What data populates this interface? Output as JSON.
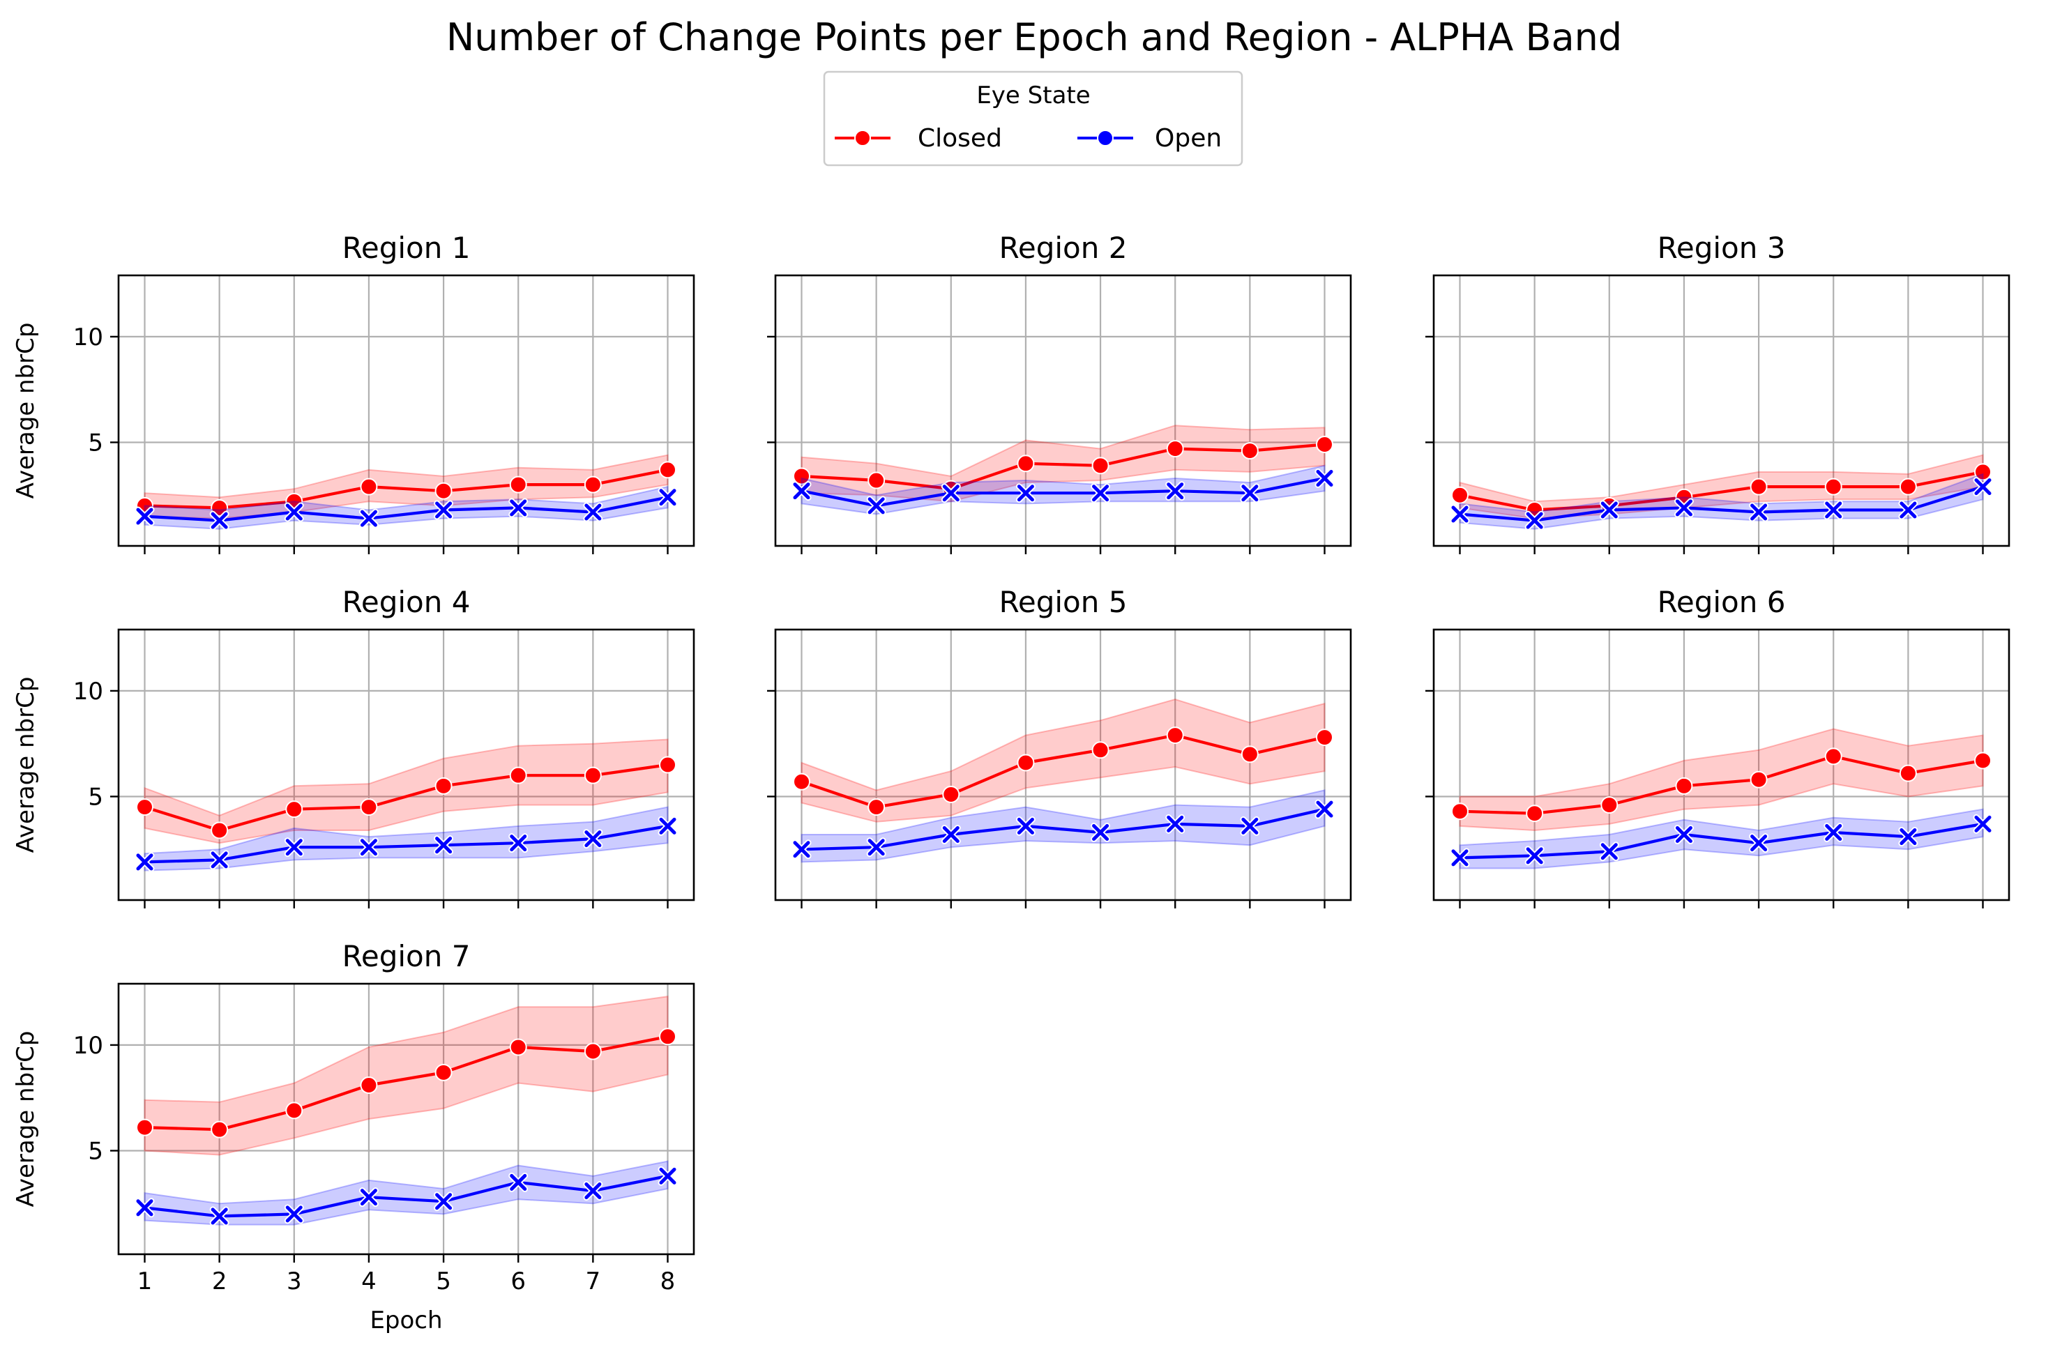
{
  "title": "Number of Change Points per Epoch and Region - ALPHA Band",
  "legend": {
    "title": "Eye State",
    "placement": "top-center",
    "entries": [
      {
        "label": "Closed",
        "color": "#ff0000",
        "marker": "circle"
      },
      {
        "label": "Open",
        "color": "#0000ff",
        "marker": "x"
      }
    ]
  },
  "colors": {
    "closed": "#ff0000",
    "open": "#0000ff",
    "grid": "#b0b0b0"
  },
  "chart_data": {
    "type": "line",
    "x": [
      1,
      2,
      3,
      4,
      5,
      6,
      7,
      8
    ],
    "xlabel": "Epoch",
    "ylabel": "Average nbrCp",
    "ylim": [
      0.1,
      12.9
    ],
    "yticks": [
      5,
      10
    ],
    "grid": true,
    "panels": [
      {
        "title": "Region 1",
        "series": [
          {
            "name": "Closed",
            "values": [
              2.0,
              1.9,
              2.2,
              2.9,
              2.7,
              3.0,
              3.0,
              3.7
            ],
            "lower": [
              1.5,
              1.4,
              1.7,
              2.2,
              2.0,
              2.3,
              2.4,
              3.0
            ],
            "upper": [
              2.6,
              2.4,
              2.8,
              3.7,
              3.4,
              3.8,
              3.7,
              4.4
            ]
          },
          {
            "name": "Open",
            "values": [
              1.5,
              1.3,
              1.7,
              1.4,
              1.8,
              1.9,
              1.7,
              2.4
            ],
            "lower": [
              1.1,
              0.9,
              1.3,
              1.1,
              1.4,
              1.5,
              1.3,
              1.9
            ],
            "upper": [
              2.0,
              1.8,
              2.2,
              1.8,
              2.2,
              2.3,
              2.1,
              2.9
            ]
          }
        ]
      },
      {
        "title": "Region 2",
        "series": [
          {
            "name": "Closed",
            "values": [
              3.4,
              3.2,
              2.8,
              4.0,
              3.9,
              4.7,
              4.6,
              4.9
            ],
            "lower": [
              2.6,
              2.5,
              2.2,
              3.1,
              3.2,
              3.7,
              3.6,
              3.9
            ],
            "upper": [
              4.3,
              4.0,
              3.4,
              5.1,
              4.7,
              5.8,
              5.6,
              5.7
            ]
          },
          {
            "name": "Open",
            "values": [
              2.7,
              2.0,
              2.6,
              2.6,
              2.6,
              2.7,
              2.6,
              3.3
            ],
            "lower": [
              2.1,
              1.6,
              2.2,
              2.1,
              2.2,
              2.2,
              2.2,
              2.7
            ],
            "upper": [
              3.3,
              2.5,
              3.1,
              3.2,
              3.0,
              3.3,
              3.1,
              3.9
            ]
          }
        ]
      },
      {
        "title": "Region 3",
        "series": [
          {
            "name": "Closed",
            "values": [
              2.5,
              1.8,
              2.0,
              2.4,
              2.9,
              2.9,
              2.9,
              3.6
            ],
            "lower": [
              1.9,
              1.4,
              1.6,
              1.9,
              2.2,
              2.3,
              2.3,
              2.9
            ],
            "upper": [
              3.1,
              2.2,
              2.4,
              3.0,
              3.6,
              3.6,
              3.5,
              4.4
            ]
          },
          {
            "name": "Open",
            "values": [
              1.6,
              1.3,
              1.8,
              1.9,
              1.7,
              1.8,
              1.8,
              2.9
            ],
            "lower": [
              1.2,
              0.9,
              1.4,
              1.5,
              1.3,
              1.4,
              1.4,
              2.3
            ],
            "upper": [
              2.1,
              1.7,
              2.2,
              2.4,
              2.1,
              2.2,
              2.2,
              3.5
            ]
          }
        ]
      },
      {
        "title": "Region 4",
        "series": [
          {
            "name": "Closed",
            "values": [
              4.5,
              3.4,
              4.4,
              4.5,
              5.5,
              6.0,
              6.0,
              6.5
            ],
            "lower": [
              3.5,
              2.8,
              3.4,
              3.4,
              4.3,
              4.6,
              4.6,
              5.2
            ],
            "upper": [
              5.4,
              4.1,
              5.5,
              5.6,
              6.8,
              7.4,
              7.5,
              7.7
            ]
          },
          {
            "name": "Open",
            "values": [
              1.9,
              2.0,
              2.6,
              2.6,
              2.7,
              2.8,
              3.0,
              3.6
            ],
            "lower": [
              1.5,
              1.6,
              2.0,
              2.1,
              2.1,
              2.1,
              2.4,
              2.8
            ],
            "upper": [
              2.3,
              2.5,
              3.5,
              3.1,
              3.3,
              3.6,
              3.8,
              4.5
            ]
          }
        ]
      },
      {
        "title": "Region 5",
        "series": [
          {
            "name": "Closed",
            "values": [
              5.7,
              4.5,
              5.1,
              6.6,
              7.2,
              7.9,
              7.0,
              7.8
            ],
            "lower": [
              4.7,
              3.8,
              4.1,
              5.4,
              5.9,
              6.4,
              5.6,
              6.2
            ],
            "upper": [
              6.6,
              5.3,
              6.2,
              7.9,
              8.6,
              9.6,
              8.5,
              9.4
            ]
          },
          {
            "name": "Open",
            "values": [
              2.5,
              2.6,
              3.2,
              3.6,
              3.3,
              3.7,
              3.6,
              4.4
            ],
            "lower": [
              1.9,
              2.0,
              2.6,
              2.9,
              2.8,
              2.9,
              2.7,
              3.6
            ],
            "upper": [
              3.2,
              3.2,
              4.0,
              4.5,
              3.9,
              4.6,
              4.5,
              5.3
            ]
          }
        ]
      },
      {
        "title": "Region 6",
        "series": [
          {
            "name": "Closed",
            "values": [
              4.3,
              4.2,
              4.6,
              5.5,
              5.8,
              6.9,
              6.1,
              6.7
            ],
            "lower": [
              3.6,
              3.4,
              3.7,
              4.4,
              4.6,
              5.6,
              5.0,
              5.5
            ],
            "upper": [
              5.0,
              5.0,
              5.6,
              6.7,
              7.2,
              8.2,
              7.4,
              7.9
            ]
          },
          {
            "name": "Open",
            "values": [
              2.1,
              2.2,
              2.4,
              3.2,
              2.8,
              3.3,
              3.1,
              3.7
            ],
            "lower": [
              1.6,
              1.6,
              1.9,
              2.5,
              2.2,
              2.7,
              2.5,
              3.1
            ],
            "upper": [
              2.7,
              2.9,
              3.2,
              3.9,
              3.4,
              4.0,
              3.8,
              4.4
            ]
          }
        ]
      },
      {
        "title": "Region 7",
        "series": [
          {
            "name": "Closed",
            "values": [
              6.1,
              6.0,
              6.9,
              8.1,
              8.7,
              9.9,
              9.7,
              10.4
            ],
            "lower": [
              5.0,
              4.8,
              5.6,
              6.5,
              7.0,
              8.2,
              7.8,
              8.6
            ],
            "upper": [
              7.4,
              7.3,
              8.2,
              9.9,
              10.6,
              11.8,
              11.8,
              12.3
            ]
          },
          {
            "name": "Open",
            "values": [
              2.3,
              1.9,
              2.0,
              2.8,
              2.6,
              3.5,
              3.1,
              3.8
            ],
            "lower": [
              1.7,
              1.5,
              1.5,
              2.2,
              2.0,
              2.7,
              2.5,
              3.2
            ],
            "upper": [
              3.0,
              2.5,
              2.7,
              3.6,
              3.2,
              4.3,
              3.8,
              4.5
            ]
          }
        ]
      }
    ]
  }
}
